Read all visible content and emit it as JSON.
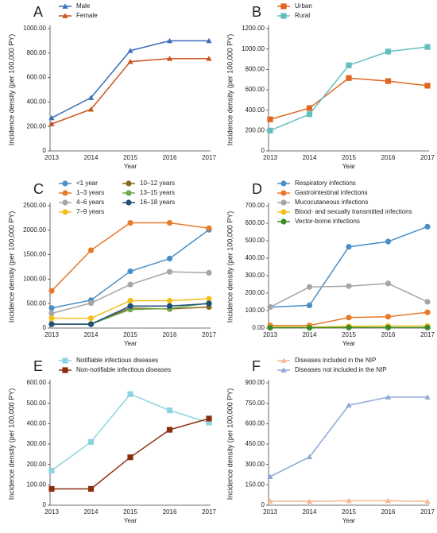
{
  "chart_data": [
    {
      "type": "line",
      "title": "A",
      "marker": "triangle",
      "x_label": "Year",
      "y_label": "Incidence density (per 100,000 PY)",
      "categories": [
        "2013",
        "2014",
        "2015",
        "2016",
        "2017"
      ],
      "ylim": [
        0,
        1000
      ],
      "yticks": [
        0,
        {
          "value": 200,
          "label": "200.00"
        },
        {
          "value": 400,
          "label": "400.00"
        },
        {
          "value": 600,
          "label": "600.00"
        },
        {
          "value": 800,
          "label": "800.00"
        },
        {
          "value": 1000,
          "label": "1000.00"
        }
      ],
      "series": [
        {
          "name": "Male",
          "color": "#3a6fba",
          "values": [
            270,
            435,
            820,
            900,
            900
          ]
        },
        {
          "name": "Female",
          "color": "#c9541f",
          "values": [
            220,
            340,
            730,
            755,
            755
          ]
        }
      ]
    },
    {
      "type": "line",
      "title": "B",
      "marker": "square",
      "x_label": "Year",
      "y_label": "Incidence density (per 100,000 PY)",
      "categories": [
        "2013",
        "2014",
        "2015",
        "2016",
        "2017"
      ],
      "ylim": [
        0,
        1200
      ],
      "yticks": [
        0,
        {
          "value": 200,
          "label": "200.00"
        },
        {
          "value": 400,
          "label": "400.00"
        },
        {
          "value": 600,
          "label": "600.00"
        },
        {
          "value": 800,
          "label": "800.00"
        },
        {
          "value": 1000,
          "label": "1000.00"
        },
        {
          "value": 1200,
          "label": "1200.00"
        }
      ],
      "series": [
        {
          "name": "Urban",
          "color": "#e0661f",
          "values": [
            310,
            420,
            715,
            685,
            640
          ]
        },
        {
          "name": "Rural",
          "color": "#62bfbe",
          "values": [
            200,
            360,
            840,
            975,
            1020
          ]
        }
      ]
    },
    {
      "type": "line",
      "title": "C",
      "marker": "circle",
      "x_label": "Year",
      "y_label": "Incidence density (per 100,000 PY)",
      "categories": [
        "2013",
        "2014",
        "2015",
        "2016",
        "2017"
      ],
      "ylim": [
        0,
        2500
      ],
      "yticks": [
        0,
        {
          "value": 500,
          "label": "500.00"
        },
        {
          "value": 1000,
          "label": "1000.00"
        },
        {
          "value": 1500,
          "label": "1500.00"
        },
        {
          "value": 2000,
          "label": "2000.00"
        },
        {
          "value": 2500,
          "label": "2500.00"
        }
      ],
      "series": [
        {
          "name": "<1 year",
          "color": "#4a90c8",
          "values": [
            410,
            570,
            1160,
            1420,
            2010
          ]
        },
        {
          "name": "1–3 years",
          "color": "#e8792a",
          "values": [
            760,
            1590,
            2150,
            2150,
            2040
          ]
        },
        {
          "name": "4–6 years",
          "color": "#a5a5a5",
          "values": [
            300,
            510,
            890,
            1150,
            1130
          ]
        },
        {
          "name": "7–9 years",
          "color": "#f2c01e",
          "values": [
            200,
            200,
            560,
            560,
            600
          ]
        },
        {
          "name": "10–12 years",
          "color": "#8b6a1a",
          "values": [
            80,
            80,
            410,
            390,
            430
          ]
        },
        {
          "name": "13–15 years",
          "color": "#6aa84f",
          "values": [
            80,
            80,
            380,
            400,
            510
          ]
        },
        {
          "name": "16–18 years",
          "color": "#1f4e79",
          "values": [
            80,
            80,
            450,
            450,
            500
          ]
        }
      ]
    },
    {
      "type": "line",
      "title": "D",
      "marker": "circle",
      "x_label": "Year",
      "y_label": "Incidence density (per 100,000 PY)",
      "categories": [
        "2013",
        "2014",
        "2015",
        "2016",
        "2017"
      ],
      "ylim": [
        0,
        700
      ],
      "yticks": [
        {
          "value": 0,
          "label": "0.00"
        },
        {
          "value": 100,
          "label": "100.00"
        },
        {
          "value": 200,
          "label": "200.00"
        },
        {
          "value": 300,
          "label": "300.00"
        },
        {
          "value": 400,
          "label": "400.00"
        },
        {
          "value": 500,
          "label": "500.00"
        },
        {
          "value": 600,
          "label": "600.00"
        },
        {
          "value": 700,
          "label": "700.00"
        }
      ],
      "series": [
        {
          "name": "Respiratory infections",
          "color": "#4a90c8",
          "values": [
            120,
            130,
            465,
            495,
            580
          ]
        },
        {
          "name": "Gastrointestinal infections",
          "color": "#e8792a",
          "values": [
            15,
            15,
            60,
            65,
            90
          ]
        },
        {
          "name": "Mucocutaneous infections",
          "color": "#a5a5a5",
          "values": [
            120,
            235,
            240,
            255,
            150
          ]
        },
        {
          "name": "Blood- and sexually transmitted infections",
          "color": "#f2c01e",
          "values": [
            5,
            5,
            10,
            12,
            12
          ]
        },
        {
          "name": "Vector-borne infections",
          "color": "#3a8a2a",
          "values": [
            2,
            2,
            3,
            3,
            3
          ]
        }
      ]
    },
    {
      "type": "line",
      "title": "E",
      "marker": "square",
      "x_label": "Year",
      "y_label": "Incidence density (per 100,000 PY)",
      "categories": [
        "2013",
        "2014",
        "2015",
        "2016",
        "2017"
      ],
      "ylim": [
        0,
        600
      ],
      "yticks": [
        0,
        {
          "value": 100,
          "label": "100.00"
        },
        {
          "value": 200,
          "label": "200.00"
        },
        {
          "value": 300,
          "label": "300.00"
        },
        {
          "value": 400,
          "label": "400.00"
        },
        {
          "value": 500,
          "label": "500.00"
        },
        {
          "value": 600,
          "label": "600.00"
        }
      ],
      "series": [
        {
          "name": "Notifiable infectious diseases",
          "color": "#8fd3e0",
          "values": [
            170,
            310,
            545,
            465,
            405
          ]
        },
        {
          "name": "Non-notifiable infectious diseases",
          "color": "#8b2e0e",
          "values": [
            80,
            80,
            235,
            370,
            425
          ]
        }
      ]
    },
    {
      "type": "line",
      "title": "F",
      "marker": "triangle",
      "x_label": "Year",
      "y_label": "Incidence density (per 100,000 PY)",
      "categories": [
        "2013",
        "2014",
        "2015",
        "2016",
        "2017"
      ],
      "ylim": [
        0,
        900
      ],
      "yticks": [
        0,
        {
          "value": 150,
          "label": "150.00"
        },
        {
          "value": 300,
          "label": "300.00"
        },
        {
          "value": 450,
          "label": "450.00"
        },
        {
          "value": 600,
          "label": "600.00"
        },
        {
          "value": 750,
          "label": "750.00"
        },
        {
          "value": 900,
          "label": "900.00"
        }
      ],
      "series": [
        {
          "name": "Diseases included in the NIP",
          "color": "#f5b990",
          "values": [
            30,
            28,
            33,
            33,
            28
          ]
        },
        {
          "name": "Diseases not included in the NIP",
          "color": "#8fa8d8",
          "values": [
            210,
            355,
            735,
            795,
            795
          ]
        }
      ]
    }
  ]
}
